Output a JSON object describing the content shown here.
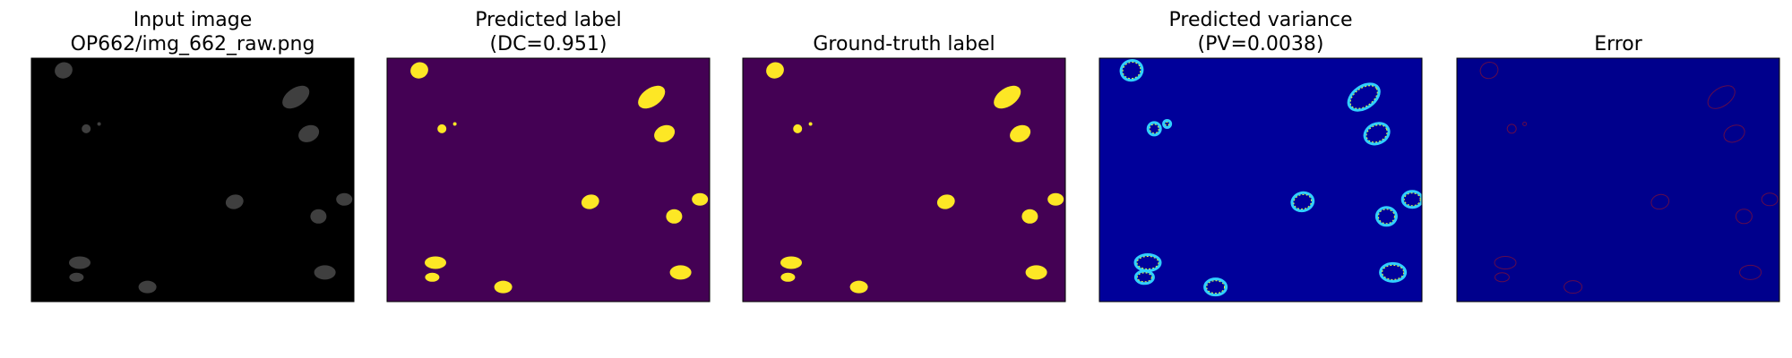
{
  "panels": [
    {
      "title": [
        "Input image",
        "OP662/img_662_raw.png"
      ]
    },
    {
      "title": [
        "Predicted label",
        "(DC=0.951)"
      ]
    },
    {
      "title": [
        "Ground-truth label"
      ]
    },
    {
      "title": [
        "Predicted variance",
        "(PV=0.0038)"
      ]
    },
    {
      "title": [
        "Error"
      ]
    }
  ]
}
